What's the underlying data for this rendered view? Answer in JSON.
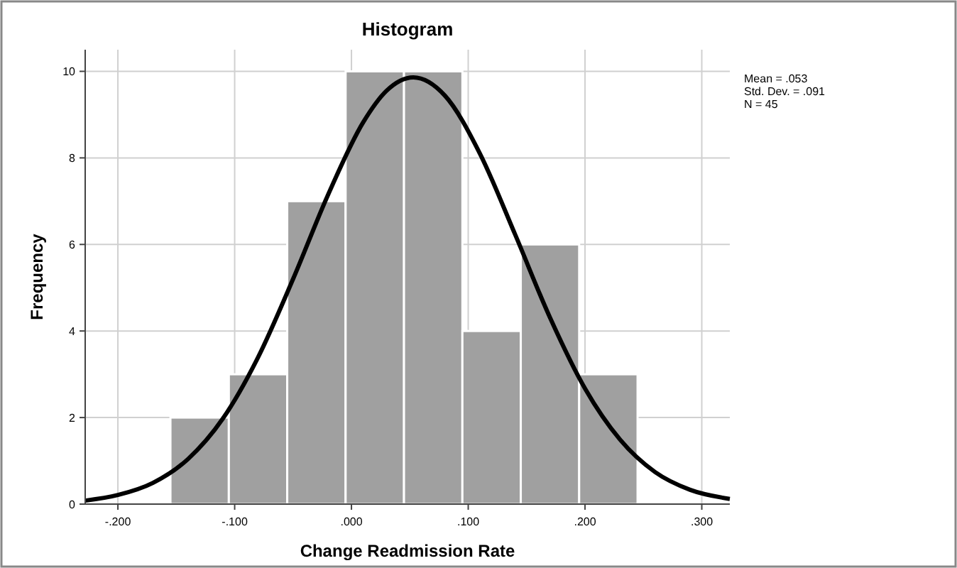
{
  "chart_data": {
    "type": "histogram",
    "title": "Histogram",
    "xlabel": "Change Readmission Rate",
    "ylabel": "Frequency",
    "bins": [
      -0.155,
      -0.105,
      -0.055,
      -0.005,
      0.045,
      0.095,
      0.145,
      0.195,
      0.245
    ],
    "values": [
      2,
      3,
      7,
      10,
      10,
      4,
      6,
      3
    ],
    "color": "#a0a0a0",
    "series": [
      {
        "type": "line",
        "color": "#000000",
        "x": [
          -0.228,
          -0.2,
          -0.17,
          -0.14,
          -0.11,
          -0.08,
          -0.05,
          -0.02,
          0.01,
          0.03,
          0.053,
          0.08,
          0.11,
          0.14,
          0.17,
          0.2,
          0.23,
          0.26,
          0.29,
          0.324
        ],
        "values": [
          0.08,
          0.21,
          0.49,
          1.04,
          1.98,
          3.39,
          5.2,
          7.15,
          8.82,
          9.55,
          9.86,
          9.44,
          8.1,
          6.24,
          4.31,
          2.67,
          1.49,
          0.74,
          0.33,
          0.12
        ]
      }
    ],
    "xlim": [
      -0.228,
      0.324
    ],
    "xticks": [
      {
        "value": -0.2,
        "label": "-.200"
      },
      {
        "value": -0.1,
        "label": "-.100"
      },
      {
        "value": 0,
        "label": ".000"
      },
      {
        "value": 0.1,
        "label": ".100"
      },
      {
        "value": 0.2,
        "label": ".200"
      },
      {
        "value": 0.3,
        "label": ".300"
      }
    ],
    "ylim": [
      0,
      10.5
    ],
    "yticks": [
      0,
      2,
      4,
      6,
      8,
      10
    ],
    "grid": true,
    "line_style": "solid",
    "annotations": [
      "Mean = .053",
      "Std. Dev. = .091",
      "N = 45"
    ]
  }
}
